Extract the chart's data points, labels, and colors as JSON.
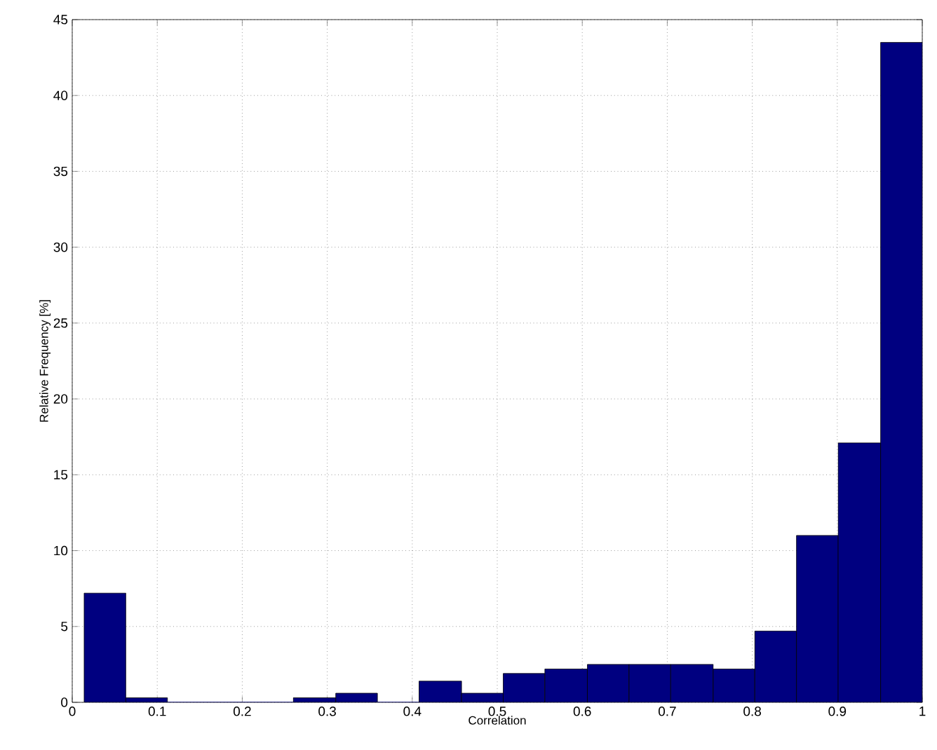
{
  "chart_data": {
    "type": "histogram",
    "xlabel": "Correlation",
    "ylabel": "Relative Frequency [%]",
    "bins": [
      0.014,
      0.063,
      0.112,
      0.26,
      0.31,
      0.359,
      0.408,
      0.458,
      0.507,
      0.556,
      0.606,
      0.655,
      0.704,
      0.754,
      0.803,
      0.852,
      0.901,
      0.951,
      1.0
    ],
    "values": [
      7.2,
      0.3,
      0,
      0.3,
      0.6,
      0,
      1.4,
      0.6,
      1.9,
      2.2,
      2.5,
      2.5,
      2.5,
      2.2,
      4.7,
      11.0,
      17.1,
      43.5
    ],
    "color": "#000080",
    "xlim": [
      0,
      1
    ],
    "ylim": [
      0,
      45
    ],
    "xticks": [
      0,
      0.1,
      0.2,
      0.3,
      0.4,
      0.5,
      0.6,
      0.7,
      0.8,
      0.9,
      1
    ],
    "yticks": [
      0,
      5,
      10,
      15,
      20,
      25,
      30,
      35,
      40,
      45
    ],
    "grid": true
  }
}
